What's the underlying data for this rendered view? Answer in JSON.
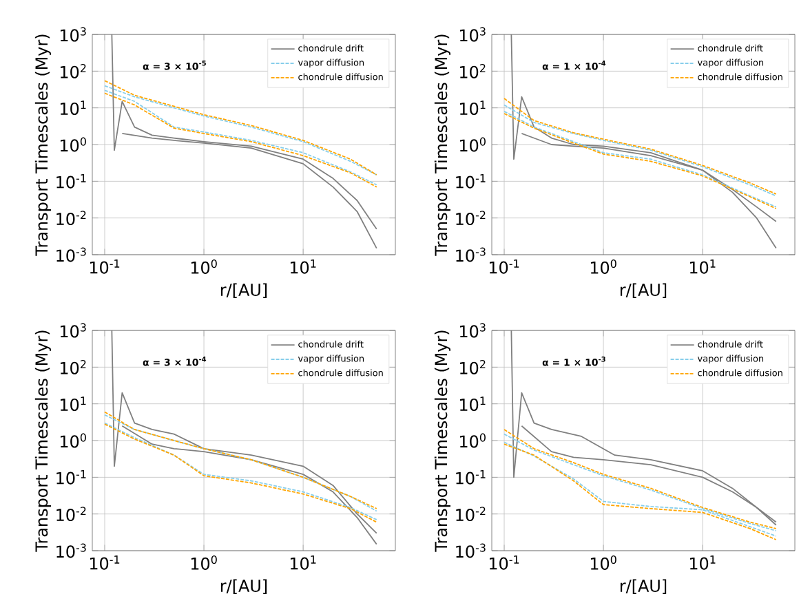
{
  "chart_data": [
    {
      "type": "line",
      "xlabel": "r/[AU]",
      "ylabel": "Transport Timescales (Myr)",
      "annotations": [
        "α = 3 × 10$^{-5}$"
      ],
      "log": "xy",
      "grid": true,
      "legend": "top right",
      "xlim": [
        0.075,
        85
      ],
      "ylim": [
        0.001,
        1000
      ],
      "xticks": [
        {
          "value": 0.1,
          "label": "10$^{-1}$"
        },
        {
          "value": 1,
          "label": "10$^{0}$"
        },
        {
          "value": 10,
          "label": "10$^{1}$"
        }
      ],
      "yticks": [
        {
          "value": 0.001,
          "label": "10$^{-3}$"
        },
        {
          "value": 0.01,
          "label": "10$^{-2}$"
        },
        {
          "value": 0.1,
          "label": "10$^{-1}$"
        },
        {
          "value": 1,
          "label": "10$^{0}$"
        },
        {
          "value": 10,
          "label": "10$^{1}$"
        },
        {
          "value": 100,
          "label": "10$^{2}$"
        },
        {
          "value": 1000,
          "label": "10$^{3}$"
        }
      ],
      "series": [
        {
          "name": "chondrule drift",
          "color": "#808080",
          "line_style": "solid",
          "x": [
            0.118,
            0.125,
            0.15,
            0.2,
            0.3,
            0.5,
            1,
            3,
            10,
            20,
            35,
            55
          ],
          "values": [
            1000,
            0.7,
            15,
            3,
            1.8,
            1.5,
            1.2,
            0.9,
            0.4,
            0.12,
            0.03,
            0.005
          ]
        },
        {
          "color": "#808080",
          "line_style": "solid",
          "x": [
            0.15,
            0.3,
            0.5,
            1,
            3,
            10,
            20,
            35,
            55
          ],
          "values": [
            2,
            1.5,
            1.3,
            1.1,
            0.8,
            0.3,
            0.07,
            0.015,
            0.0015
          ]
        },
        {
          "name": "vapor diffusion",
          "color": "#87ceeb",
          "line_style": "dashed",
          "x": [
            0.1,
            0.2,
            0.5,
            1,
            3,
            10,
            30,
            55
          ],
          "values": [
            40,
            20,
            10,
            6,
            3,
            1.2,
            0.35,
            0.15
          ]
        },
        {
          "color": "#87ceeb",
          "line_style": "dashed",
          "x": [
            0.1,
            0.2,
            0.5,
            1,
            3,
            10,
            30,
            55
          ],
          "values": [
            30,
            15,
            3,
            2.2,
            1.3,
            0.6,
            0.18,
            0.08
          ]
        },
        {
          "name": "chondrule diffusion",
          "color": "#ffa500",
          "line_style": "dashed",
          "x": [
            0.1,
            0.2,
            0.5,
            1,
            3,
            10,
            30,
            55
          ],
          "values": [
            55,
            22,
            11,
            6.5,
            3.3,
            1.3,
            0.4,
            0.15
          ]
        },
        {
          "color": "#ffa500",
          "line_style": "dashed",
          "x": [
            0.1,
            0.2,
            0.5,
            1,
            3,
            10,
            30,
            55
          ],
          "values": [
            25,
            12,
            2.8,
            2,
            1.2,
            0.5,
            0.17,
            0.07
          ]
        }
      ]
    },
    {
      "type": "line",
      "xlabel": "r/[AU]",
      "ylabel": "Transport Timescales (Myr)",
      "annotations": [
        "α = 1 × 10$^{-4}$"
      ],
      "log": "xy",
      "grid": true,
      "legend": "top right",
      "xlim": [
        0.075,
        85
      ],
      "ylim": [
        0.001,
        1000
      ],
      "xticks": [
        {
          "value": 0.1,
          "label": "10$^{-1}$"
        },
        {
          "value": 1,
          "label": "10$^{0}$"
        },
        {
          "value": 10,
          "label": "10$^{1}$"
        }
      ],
      "yticks": [
        {
          "value": 0.001,
          "label": "10$^{-3}$"
        },
        {
          "value": 0.01,
          "label": "10$^{-2}$"
        },
        {
          "value": 0.1,
          "label": "10$^{-1}$"
        },
        {
          "value": 1,
          "label": "10$^{0}$"
        },
        {
          "value": 10,
          "label": "10$^{1}$"
        },
        {
          "value": 100,
          "label": "10$^{2}$"
        },
        {
          "value": 1000,
          "label": "10$^{3}$"
        }
      ],
      "series": [
        {
          "name": "chondrule drift",
          "color": "#808080",
          "line_style": "solid",
          "x": [
            0.118,
            0.125,
            0.15,
            0.2,
            0.3,
            0.5,
            1,
            3,
            10,
            20,
            35,
            55
          ],
          "values": [
            1000,
            0.4,
            20,
            3,
            1.5,
            1.0,
            0.9,
            0.6,
            0.2,
            0.06,
            0.02,
            0.008
          ]
        },
        {
          "color": "#808080",
          "line_style": "solid",
          "x": [
            0.15,
            0.3,
            0.5,
            1,
            3,
            10,
            20,
            35,
            55
          ],
          "values": [
            2,
            1.0,
            0.9,
            0.8,
            0.5,
            0.2,
            0.05,
            0.01,
            0.0015
          ]
        },
        {
          "name": "vapor diffusion",
          "color": "#87ceeb",
          "line_style": "dashed",
          "x": [
            0.1,
            0.2,
            0.5,
            1,
            3,
            10,
            30,
            55
          ],
          "values": [
            12,
            4,
            2,
            1.3,
            0.7,
            0.25,
            0.08,
            0.04
          ]
        },
        {
          "color": "#87ceeb",
          "line_style": "dashed",
          "x": [
            0.1,
            0.2,
            0.5,
            1,
            3,
            10,
            30,
            55
          ],
          "values": [
            8,
            3,
            1.2,
            0.6,
            0.4,
            0.15,
            0.04,
            0.02
          ]
        },
        {
          "name": "chondrule diffusion",
          "color": "#ffa500",
          "line_style": "dashed",
          "x": [
            0.1,
            0.2,
            0.5,
            1,
            3,
            10,
            30,
            55
          ],
          "values": [
            18,
            4.5,
            2.1,
            1.4,
            0.75,
            0.27,
            0.09,
            0.045
          ]
        },
        {
          "color": "#ffa500",
          "line_style": "dashed",
          "x": [
            0.1,
            0.2,
            0.5,
            1,
            3,
            10,
            30,
            55
          ],
          "values": [
            7,
            2.8,
            1.1,
            0.55,
            0.35,
            0.14,
            0.038,
            0.018
          ]
        }
      ]
    },
    {
      "type": "line",
      "xlabel": "r/[AU]",
      "ylabel": "Transport Timescales (Myr)",
      "annotations": [
        "α = 3 × 10$^{-4}$"
      ],
      "log": "xy",
      "grid": true,
      "legend": "top right",
      "xlim": [
        0.075,
        85
      ],
      "ylim": [
        0.001,
        1000
      ],
      "xticks": [
        {
          "value": 0.1,
          "label": "10$^{-1}$"
        },
        {
          "value": 1,
          "label": "10$^{0}$"
        },
        {
          "value": 10,
          "label": "10$^{1}$"
        }
      ],
      "yticks": [
        {
          "value": 0.001,
          "label": "10$^{-3}$"
        },
        {
          "value": 0.01,
          "label": "10$^{-2}$"
        },
        {
          "value": 0.1,
          "label": "10$^{-1}$"
        },
        {
          "value": 1,
          "label": "10$^{0}$"
        },
        {
          "value": 10,
          "label": "10$^{1}$"
        },
        {
          "value": 100,
          "label": "10$^{2}$"
        },
        {
          "value": 1000,
          "label": "10$^{3}$"
        }
      ],
      "series": [
        {
          "name": "chondrule drift",
          "color": "#808080",
          "line_style": "solid",
          "x": [
            0.118,
            0.125,
            0.15,
            0.2,
            0.3,
            0.5,
            1,
            3,
            10,
            20,
            35,
            55
          ],
          "values": [
            1000,
            0.2,
            20,
            3,
            2,
            1.5,
            0.6,
            0.4,
            0.2,
            0.06,
            0.01,
            0.003
          ]
        },
        {
          "color": "#808080",
          "line_style": "solid",
          "x": [
            0.15,
            0.3,
            0.5,
            1,
            3,
            10,
            20,
            35,
            55
          ],
          "values": [
            2.5,
            0.8,
            0.6,
            0.5,
            0.3,
            0.12,
            0.04,
            0.008,
            0.0015
          ]
        },
        {
          "name": "vapor diffusion",
          "color": "#87ceeb",
          "line_style": "dashed",
          "x": [
            0.1,
            0.2,
            0.5,
            1,
            3,
            10,
            30,
            55
          ],
          "values": [
            5,
            2,
            1,
            0.6,
            0.3,
            0.1,
            0.03,
            0.012
          ]
        },
        {
          "color": "#87ceeb",
          "line_style": "dashed",
          "x": [
            0.1,
            0.2,
            0.5,
            1,
            3,
            10,
            30,
            55
          ],
          "values": [
            3,
            1.2,
            0.4,
            0.12,
            0.08,
            0.04,
            0.015,
            0.007
          ]
        },
        {
          "name": "chondrule diffusion",
          "color": "#ffa500",
          "line_style": "dashed",
          "x": [
            0.1,
            0.2,
            0.5,
            1,
            3,
            10,
            30,
            55
          ],
          "values": [
            6,
            2,
            1,
            0.6,
            0.3,
            0.1,
            0.03,
            0.014
          ]
        },
        {
          "color": "#ffa500",
          "line_style": "dashed",
          "x": [
            0.1,
            0.2,
            0.5,
            1,
            3,
            10,
            30,
            55
          ],
          "values": [
            2.8,
            1.1,
            0.4,
            0.11,
            0.07,
            0.035,
            0.014,
            0.006
          ]
        }
      ]
    },
    {
      "type": "line",
      "xlabel": "r/[AU]",
      "ylabel": "Transport Timescales (Myr)",
      "annotations": [
        "α = 1 × 10$^{-3}$"
      ],
      "log": "xy",
      "grid": true,
      "legend": "top right",
      "xlim": [
        0.075,
        85
      ],
      "ylim": [
        0.001,
        1000
      ],
      "xticks": [
        {
          "value": 0.1,
          "label": "10$^{-1}$"
        },
        {
          "value": 1,
          "label": "10$^{0}$"
        },
        {
          "value": 10,
          "label": "10$^{1}$"
        }
      ],
      "yticks": [
        {
          "value": 0.001,
          "label": "10$^{-3}$"
        },
        {
          "value": 0.01,
          "label": "10$^{-2}$"
        },
        {
          "value": 0.1,
          "label": "10$^{-1}$"
        },
        {
          "value": 1,
          "label": "10$^{0}$"
        },
        {
          "value": 10,
          "label": "10$^{1}$"
        },
        {
          "value": 100,
          "label": "10$^{2}$"
        },
        {
          "value": 1000,
          "label": "10$^{3}$"
        }
      ],
      "series": [
        {
          "name": "chondrule drift",
          "color": "#808080",
          "line_style": "solid",
          "x": [
            0.118,
            0.125,
            0.15,
            0.2,
            0.3,
            0.6,
            1.3,
            3,
            10,
            20,
            35,
            55
          ],
          "values": [
            1000,
            0.1,
            20,
            3,
            2,
            1.3,
            0.4,
            0.3,
            0.15,
            0.05,
            0.015,
            0.006
          ]
        },
        {
          "color": "#808080",
          "line_style": "solid",
          "x": [
            0.15,
            0.3,
            0.5,
            1,
            3,
            10,
            20,
            35,
            55
          ],
          "values": [
            2.5,
            0.5,
            0.35,
            0.3,
            0.22,
            0.1,
            0.04,
            0.015,
            0.005
          ]
        },
        {
          "name": "vapor diffusion",
          "color": "#87ceeb",
          "line_style": "dashed",
          "x": [
            0.1,
            0.2,
            0.5,
            1,
            3,
            10,
            30,
            55
          ],
          "values": [
            1.5,
            0.55,
            0.22,
            0.11,
            0.045,
            0.014,
            0.0055,
            0.0035
          ]
        },
        {
          "color": "#87ceeb",
          "line_style": "dashed",
          "x": [
            0.1,
            0.2,
            0.5,
            1,
            3,
            10,
            30,
            55
          ],
          "values": [
            0.9,
            0.38,
            0.09,
            0.022,
            0.016,
            0.013,
            0.0045,
            0.0025
          ]
        },
        {
          "name": "chondrule diffusion",
          "color": "#ffa500",
          "line_style": "dashed",
          "x": [
            0.1,
            0.2,
            0.5,
            1,
            3,
            10,
            30,
            55
          ],
          "values": [
            2,
            0.6,
            0.25,
            0.12,
            0.05,
            0.015,
            0.006,
            0.004
          ]
        },
        {
          "color": "#ffa500",
          "line_style": "dashed",
          "x": [
            0.1,
            0.2,
            0.5,
            1,
            3,
            10,
            30,
            55
          ],
          "values": [
            0.8,
            0.4,
            0.08,
            0.018,
            0.014,
            0.011,
            0.004,
            0.002
          ]
        }
      ]
    }
  ]
}
